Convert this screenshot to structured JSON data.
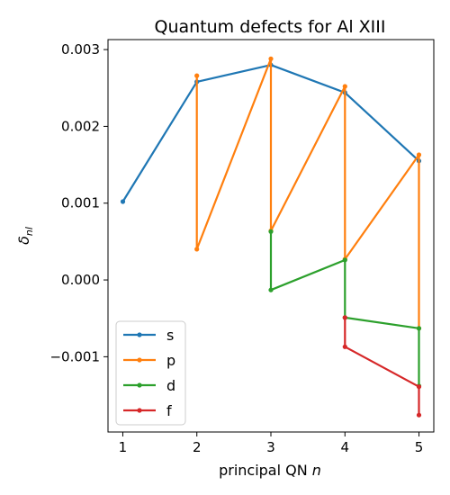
{
  "chart_data": {
    "type": "line",
    "title": "Quantum defects for Al XIII",
    "xlabel_text": "principal QN ",
    "xlabel_var": "n",
    "ylabel_main": "δ",
    "ylabel_sub": "nl",
    "xlim": [
      0.8,
      5.2
    ],
    "ylim": [
      -0.00198,
      0.00313
    ],
    "xticks": [
      1,
      2,
      3,
      4,
      5
    ],
    "xtick_labels": [
      "1",
      "2",
      "3",
      "4",
      "5"
    ],
    "yticks": [
      -0.001,
      0.0,
      0.001,
      0.002,
      0.003
    ],
    "ytick_labels": [
      "−0.001",
      "0.000",
      "0.001",
      "0.002",
      "0.003"
    ],
    "legend_position": "lower-left",
    "series": [
      {
        "name": "s",
        "color": "#1f77b4",
        "points": [
          [
            1,
            0.00102
          ],
          [
            2,
            0.00258
          ],
          [
            3,
            0.0028
          ],
          [
            4,
            0.00244
          ],
          [
            5,
            0.00155
          ]
        ]
      },
      {
        "name": "p",
        "color": "#ff7f0e",
        "points": [
          [
            2,
            0.00266
          ],
          [
            2,
            0.0004
          ],
          [
            3,
            0.00288
          ],
          [
            3,
            0.00064
          ],
          [
            4,
            0.00252
          ],
          [
            4,
            0.00027
          ],
          [
            5,
            0.00163
          ],
          [
            5,
            -0.00063
          ]
        ]
      },
      {
        "name": "d",
        "color": "#2ca02c",
        "points": [
          [
            3,
            0.00063
          ],
          [
            3,
            -0.00013
          ],
          [
            4,
            0.00026
          ],
          [
            4,
            -0.00049
          ],
          [
            5,
            -0.00063
          ],
          [
            5,
            -0.00138
          ]
        ]
      },
      {
        "name": "f",
        "color": "#d62728",
        "points": [
          [
            4,
            -0.00049
          ],
          [
            4,
            -0.00087
          ],
          [
            5,
            -0.00139
          ],
          [
            5,
            -0.00176
          ]
        ]
      }
    ]
  }
}
